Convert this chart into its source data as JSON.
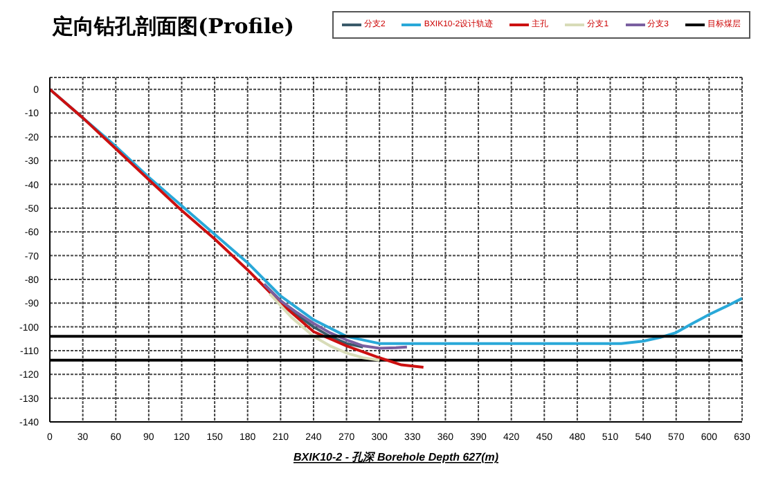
{
  "chart_data": {
    "type": "line",
    "title": "定向钻孔剖面图(Profile)",
    "xlabel": "BXIK10-2 - 孔深  Borehole Depth 627(m)",
    "xlim": [
      0,
      630
    ],
    "xticks": [
      0,
      30,
      60,
      90,
      120,
      150,
      180,
      210,
      240,
      270,
      300,
      330,
      360,
      390,
      420,
      450,
      480,
      510,
      540,
      570,
      600,
      630
    ],
    "ylim": [
      -140,
      5
    ],
    "yticks": [
      0,
      -10,
      -20,
      -30,
      -40,
      -50,
      -60,
      -70,
      -80,
      -90,
      -100,
      -110,
      -120,
      -130,
      -140
    ],
    "grid": true,
    "legend": "top right",
    "marker": "none",
    "line_style": "solid",
    "series": [
      {
        "name": "分支2",
        "color": "#3a5a6a",
        "x": [
          195,
          210,
          225,
          240,
          255,
          270,
          285
        ],
        "values": [
          -82,
          -89,
          -95,
          -100,
          -104,
          -107,
          -108.5
        ]
      },
      {
        "name": "BXIK10-2设计轨迹",
        "color": "#29a8d8",
        "x": [
          0,
          30,
          60,
          90,
          120,
          150,
          180,
          210,
          240,
          270,
          300,
          330,
          420,
          520,
          540,
          555,
          570,
          585,
          600,
          615,
          630
        ],
        "values": [
          0,
          -12,
          -24,
          -37,
          -49,
          -61,
          -73,
          -87,
          -97,
          -104,
          -107,
          -107,
          -107,
          -107,
          -106,
          -104.5,
          -102.4,
          -98.5,
          -94.8,
          -91.5,
          -88
        ]
      },
      {
        "name": "主孔",
        "color": "#cc1010",
        "x": [
          0,
          30,
          60,
          90,
          120,
          150,
          180,
          210,
          240,
          270,
          300,
          320,
          340
        ],
        "values": [
          0,
          -12,
          -25,
          -38,
          -51,
          -63,
          -76,
          -90,
          -102,
          -108,
          -113,
          -116,
          -117
        ]
      },
      {
        "name": "分支1",
        "color": "#d8dcb8",
        "x": [
          200,
          220,
          240,
          255,
          270,
          285,
          300
        ],
        "values": [
          -86,
          -96,
          -104,
          -108,
          -111,
          -113,
          -114
        ]
      },
      {
        "name": "分支3",
        "color": "#7a5fa0",
        "x": [
          195,
          210,
          225,
          240,
          255,
          270,
          285,
          300,
          315,
          325
        ],
        "values": [
          -82,
          -89,
          -94,
          -98.5,
          -102.5,
          -105.5,
          -108,
          -109,
          -108.8,
          -108.5
        ]
      },
      {
        "name": "目标煤层",
        "color": "#000000",
        "x": [
          0,
          630
        ],
        "values": [
          -104,
          -104
        ]
      }
    ],
    "ref_lines": [
      {
        "axis": "y",
        "value": -114,
        "color": "#000000"
      }
    ]
  }
}
